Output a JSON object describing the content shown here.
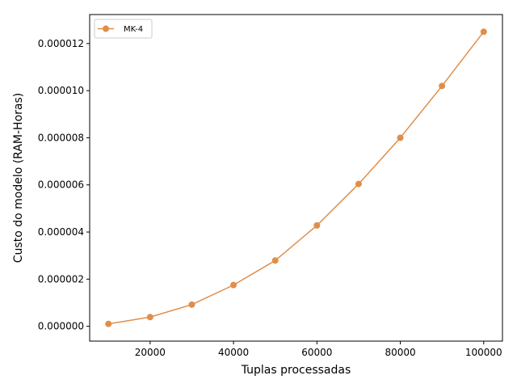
{
  "chart_data": {
    "type": "line",
    "xlabel": "Tuplas processadas",
    "ylabel": "Custo do modelo (RAM-Horas)",
    "xlim": [
      5500,
      104500
    ],
    "ylim": [
      -6.3e-07,
      1.323e-05
    ],
    "x_ticks": [
      20000,
      40000,
      60000,
      80000,
      100000
    ],
    "x_tick_labels": [
      "20000",
      "40000",
      "60000",
      "80000",
      "100000"
    ],
    "y_ticks": [
      0,
      2e-06,
      4e-06,
      6e-06,
      8e-06,
      1e-05,
      1.2e-05
    ],
    "y_tick_labels": [
      "0.000000",
      "0.000002",
      "0.000004",
      "0.000006",
      "0.000008",
      "0.000010",
      "0.000012"
    ],
    "grid": false,
    "legend_position": "top-left",
    "series": [
      {
        "name": "MK-4",
        "color": "#e08e4a",
        "marker": "circle",
        "x": [
          10000,
          20000,
          30000,
          40000,
          50000,
          60000,
          70000,
          80000,
          90000,
          100000
        ],
        "y": [
          1e-07,
          3.9e-07,
          9.2e-07,
          1.75e-06,
          2.79e-06,
          4.28e-06,
          6.04e-06,
          8e-06,
          1.02e-05,
          1.25e-05
        ]
      }
    ]
  }
}
